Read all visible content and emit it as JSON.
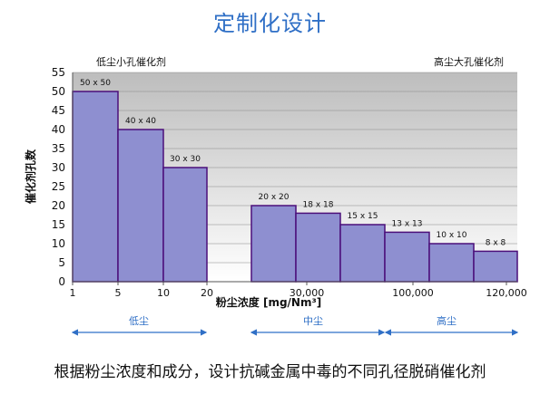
{
  "slide": {
    "title": "定制化设计",
    "caption": "根据粉尘浓度和成分，设计抗碱金属中毒的不同孔径脱硝催化剂"
  },
  "colors": {
    "title": "#2f6fc6",
    "bar_fill": "#8e8fd0",
    "bar_stroke": "#4b0f7a",
    "plot_top": "#bdbdbd",
    "plot_bottom": "#ffffff",
    "arrow": "#2f6fc6"
  },
  "chart_data": {
    "type": "bar",
    "ylabel": "催化剂孔数",
    "xlabel": "粉尘浓度 [mg/Nm³]",
    "ylim": [
      0,
      55
    ],
    "yticks": [
      0,
      5,
      10,
      15,
      20,
      25,
      30,
      35,
      40,
      45,
      50,
      55
    ],
    "annotations": {
      "left": "低尘小孔催化剂",
      "right": "高尘大孔催化剂"
    },
    "x_ticks": [
      "1",
      "5",
      "10",
      "20",
      "30,000",
      "100,000",
      "120,000"
    ],
    "bars": [
      {
        "label": "50 x 50",
        "value": 50
      },
      {
        "label": "40 x 40",
        "value": 40
      },
      {
        "label": "30 x 30",
        "value": 30
      },
      {
        "label": "20 x 20",
        "value": 20
      },
      {
        "label": "18 x 18",
        "value": 18
      },
      {
        "label": "15 x 15",
        "value": 15
      },
      {
        "label": "13 x 13",
        "value": 13
      },
      {
        "label": "10 x 10",
        "value": 10
      },
      {
        "label": "8 x 8",
        "value": 8
      }
    ],
    "ranges": [
      "低尘",
      "中尘",
      "高尘"
    ],
    "grid": true
  }
}
